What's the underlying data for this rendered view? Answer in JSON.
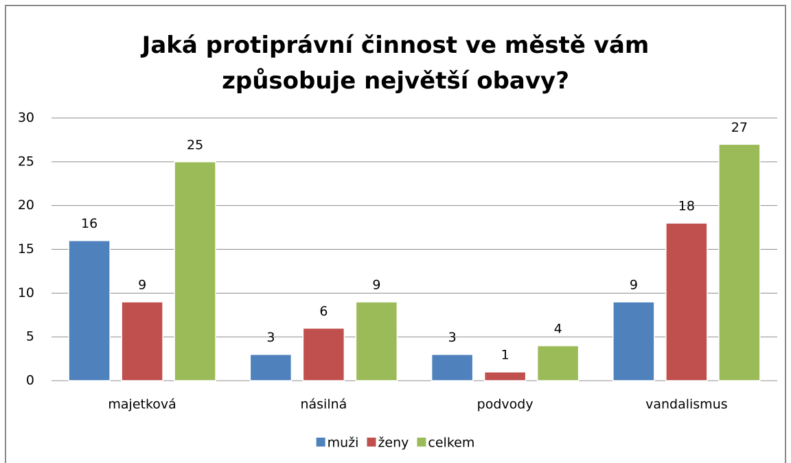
{
  "chart_data": {
    "type": "bar",
    "title": "Jaká protiprávní činnost ve městě vám způsobuje největší obavy?",
    "categories": [
      "majetková",
      "násilná",
      "podvody",
      "vandalismus"
    ],
    "series": [
      {
        "name": "muži",
        "color": "#4f81bd",
        "values": [
          16,
          3,
          3,
          9
        ]
      },
      {
        "name": "ženy",
        "color": "#c0504d",
        "values": [
          9,
          6,
          1,
          18
        ]
      },
      {
        "name": "celkem",
        "color": "#9bbb59",
        "values": [
          25,
          9,
          4,
          27
        ]
      }
    ],
    "ylim": [
      0,
      30
    ],
    "yticks": [
      0,
      5,
      10,
      15,
      20,
      25,
      30
    ],
    "grid": true,
    "legend": "bottom"
  }
}
